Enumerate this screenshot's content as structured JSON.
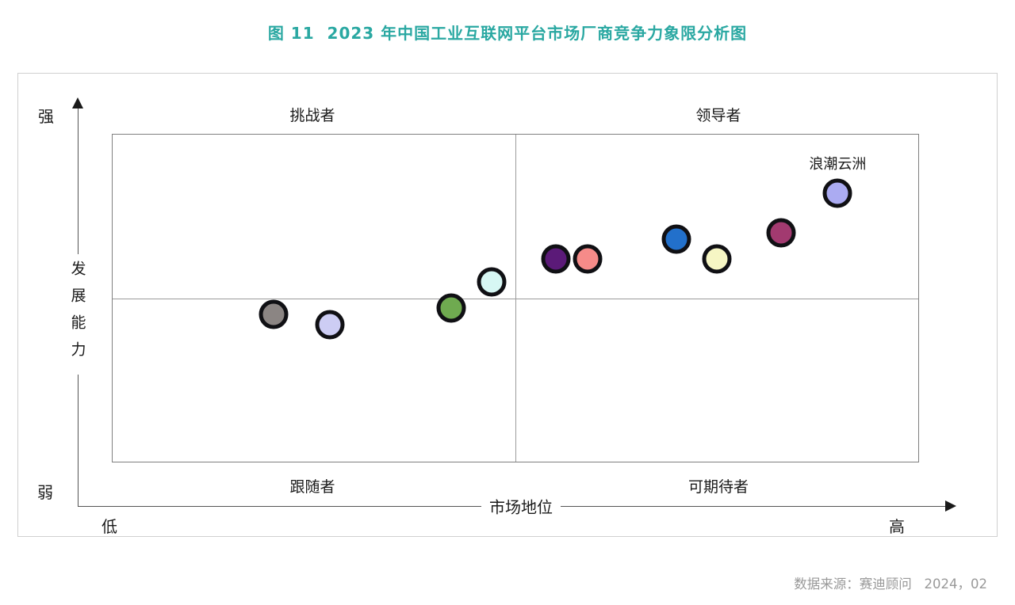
{
  "title": "图 11  2023 年中国工业互联网平台市场厂商竞争力象限分析图",
  "source": "数据来源：赛迪顾问   2024，02",
  "quadrants": {
    "top_left": "挑战者",
    "top_right": "领导者",
    "bottom_left": "跟随者",
    "bottom_right": "可期待者"
  },
  "axes": {
    "y_label": "发展能力",
    "y_max_label": "强",
    "y_min_label": "弱",
    "x_label": "市场地位",
    "x_min_label": "低",
    "x_max_label": "高"
  },
  "colors": {
    "title": "#2AA8A2",
    "dot_border": "#101014",
    "plot_border": "#7F7F7F",
    "grid_line": "#9A9A9A",
    "axis_line": "#555555",
    "source_text": "#999999"
  },
  "chart_data": {
    "type": "scatter",
    "title": "2023 年中国工业互联网平台市场厂商竞争力象限分析图",
    "xlabel": "市场地位",
    "ylabel": "发展能力",
    "xlim": [
      0,
      100
    ],
    "ylim": [
      0,
      100
    ],
    "x_range_labels": [
      "低",
      "高"
    ],
    "y_range_labels": [
      "弱",
      "强"
    ],
    "quadrant_labels": [
      "挑战者",
      "领导者",
      "跟随者",
      "可期待者"
    ],
    "grid": false,
    "legend": "none",
    "points": [
      {
        "label": "",
        "x": 20,
        "y": 45,
        "color": "#8B8583"
      },
      {
        "label": "",
        "x": 27,
        "y": 42,
        "color": "#CDCDF4"
      },
      {
        "label": "",
        "x": 42,
        "y": 47,
        "color": "#6FAA50"
      },
      {
        "label": "",
        "x": 47,
        "y": 55,
        "color": "#D7F7F4"
      },
      {
        "label": "",
        "x": 55,
        "y": 62,
        "color": "#5B1A78"
      },
      {
        "label": "",
        "x": 59,
        "y": 62,
        "color": "#F68B89"
      },
      {
        "label": "",
        "x": 70,
        "y": 68,
        "color": "#2270CB"
      },
      {
        "label": "",
        "x": 75,
        "y": 62,
        "color": "#F6F6C4"
      },
      {
        "label": "",
        "x": 83,
        "y": 70,
        "color": "#A23A70"
      },
      {
        "label": "浪潮云洲",
        "x": 90,
        "y": 82,
        "color": "#ABABF2"
      }
    ]
  }
}
